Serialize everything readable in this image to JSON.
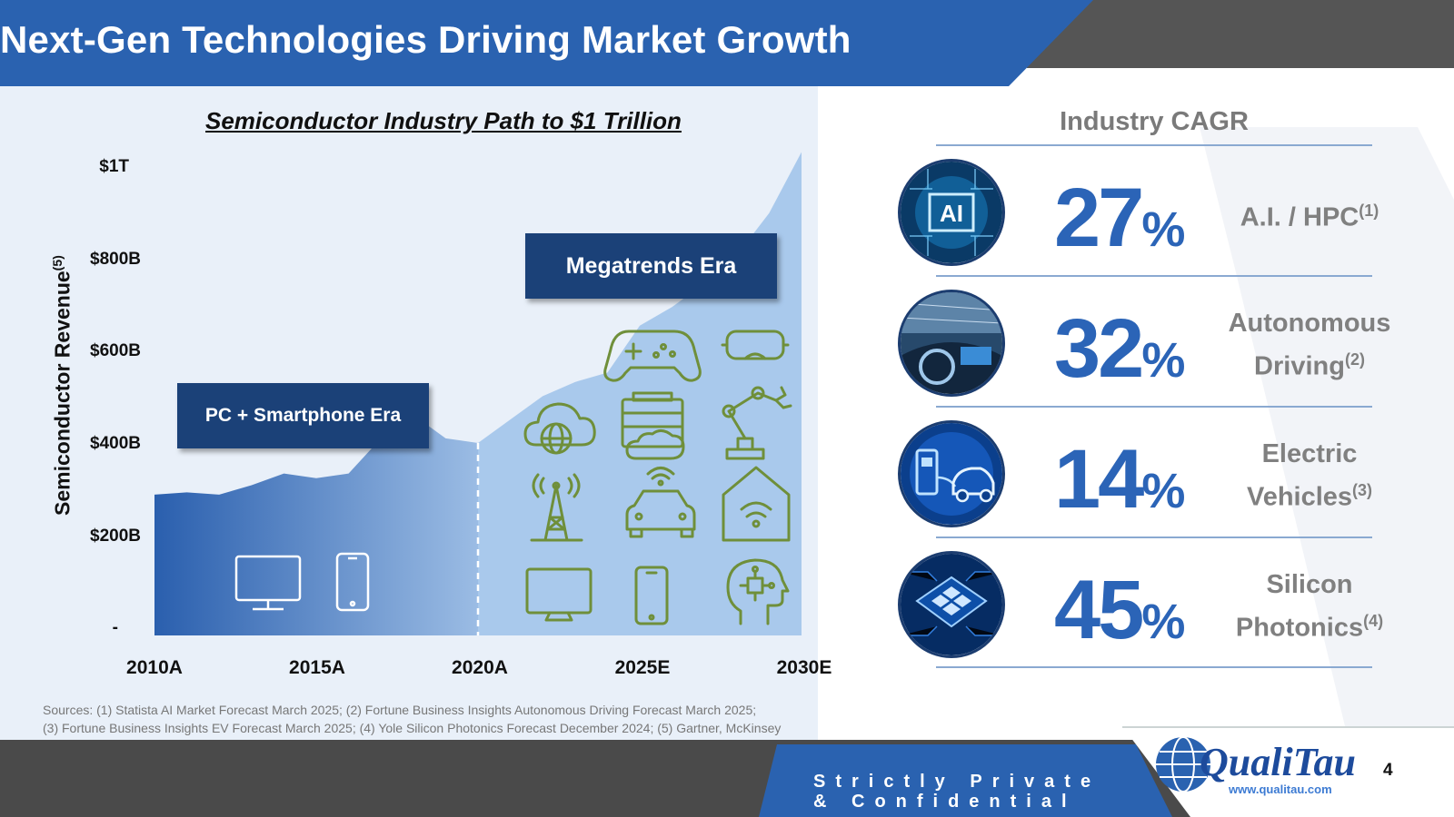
{
  "page_title": "Next-Gen Technologies Driving Market Growth",
  "chart_title": "Semiconductor Industry Path to $1 Trillion",
  "y_axis_label": "Semiconductor Revenue",
  "y_axis_label_note": "(5)",
  "y_ticks": [
    "$1T",
    "$800B",
    "$600B",
    "$400B",
    "$200B",
    "-"
  ],
  "x_ticks": [
    "2010A",
    "2015A",
    "2020A",
    "2025E",
    "2030E"
  ],
  "era_pc_label": "PC + Smartphone Era",
  "era_mega_label": "Megatrends Era",
  "chart_data": {
    "type": "area",
    "title": "Semiconductor Industry Path to $1 Trillion",
    "xlabel": "",
    "ylabel": "Semiconductor Revenue (5)",
    "ylim": [
      0,
      1000
    ],
    "y_unit": "$B",
    "x": [
      2010,
      2011,
      2012,
      2013,
      2014,
      2015,
      2016,
      2017,
      2018,
      2019,
      2020,
      2021,
      2022,
      2023,
      2024,
      2025,
      2026,
      2027,
      2028,
      2029,
      2030
    ],
    "values": [
      300,
      305,
      300,
      320,
      345,
      335,
      345,
      420,
      470,
      420,
      410,
      460,
      510,
      540,
      560,
      660,
      700,
      750,
      810,
      900,
      1030
    ],
    "eras": [
      {
        "name": "PC + Smartphone Era",
        "from": 2010,
        "to": 2020
      },
      {
        "name": "Megatrends Era",
        "from": 2020,
        "to": 2030
      }
    ],
    "annotations": [
      "PC + Smartphone Era",
      "Megatrends Era"
    ]
  },
  "cagr": {
    "heading": "Industry CAGR",
    "items": [
      {
        "value": "27",
        "unit": "%",
        "label_lines": [
          "A.I. / HPC"
        ],
        "note": "(1)",
        "icon": "ai-chip-icon"
      },
      {
        "value": "32",
        "unit": "%",
        "label_lines": [
          "Autonomous",
          "Driving"
        ],
        "note": "(2)",
        "icon": "car-dashboard-icon"
      },
      {
        "value": "14",
        "unit": "%",
        "label_lines": [
          "Electric",
          "Vehicles"
        ],
        "note": "(3)",
        "icon": "ev-charging-icon"
      },
      {
        "value": "45",
        "unit": "%",
        "label_lines": [
          "Silicon",
          "Photonics"
        ],
        "note": "(4)",
        "icon": "photonic-chip-icon"
      }
    ]
  },
  "sources_line1": "Sources: (1) Statista AI Market Forecast March 2025; (2) Fortune Business Insights Autonomous Driving Forecast March 2025;",
  "sources_line2": "(3) Fortune Business Insights EV Forecast March 2025; (4) Yole Silicon Photonics Forecast December 2024; (5) Gartner, McKinsey",
  "footer_line1": "Strictly Private",
  "footer_line2": "& Confidential",
  "logo_text": "QualiTau",
  "logo_url": "www.qualitau.com",
  "page_number": "4",
  "colors": {
    "header_blue": "#2a62b0",
    "dark_navy": "#1b4178",
    "accent_blue": "#2b64b7",
    "icon_green": "#6f8f3a",
    "footer_grey": "#4a4a4a"
  }
}
